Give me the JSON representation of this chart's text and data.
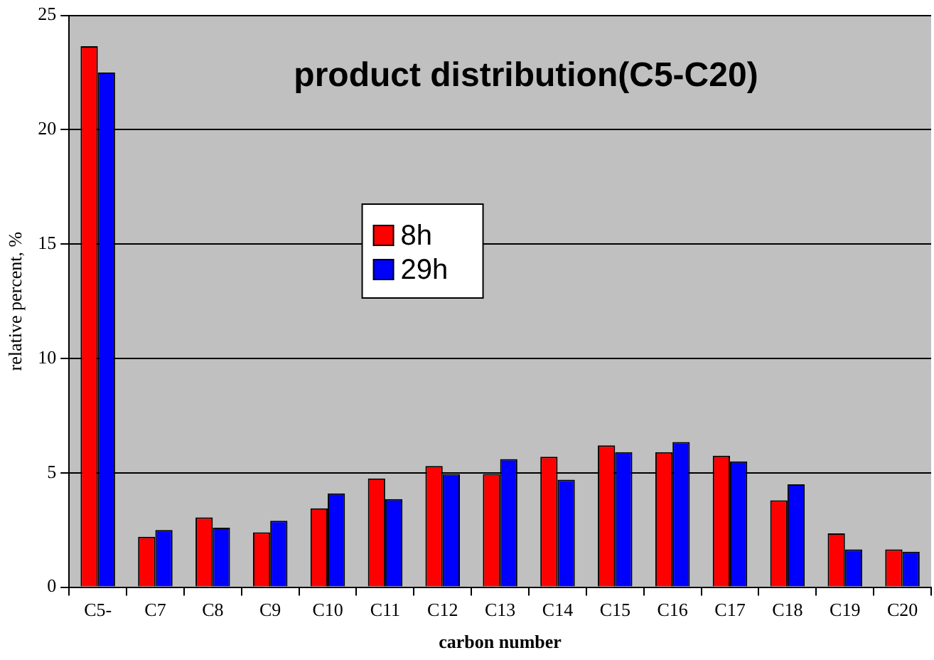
{
  "chart_data": {
    "type": "bar",
    "title": "product distribution(C5-C20)",
    "xlabel": "carbon number",
    "ylabel": "relative percent, %",
    "categories": [
      "C5-",
      "C7",
      "C8",
      "C9",
      "C10",
      "C11",
      "C12",
      "C13",
      "C14",
      "C15",
      "C16",
      "C17",
      "C18",
      "C19",
      "C20"
    ],
    "series": [
      {
        "name": "8h",
        "color": "#ff0000",
        "values": [
          23.65,
          2.2,
          3.05,
          2.4,
          3.45,
          4.75,
          5.3,
          4.95,
          5.7,
          6.2,
          5.9,
          5.75,
          3.8,
          2.35,
          1.65
        ]
      },
      {
        "name": "29h",
        "color": "#0000ff",
        "values": [
          22.5,
          2.5,
          2.6,
          2.9,
          4.1,
          3.85,
          4.95,
          5.6,
          4.7,
          5.9,
          6.35,
          5.5,
          4.5,
          1.65,
          1.55
        ]
      }
    ],
    "ylim": [
      0,
      25
    ],
    "yticks": [
      0,
      5,
      10,
      15,
      20,
      25
    ],
    "grid": "y",
    "legend": "center"
  }
}
